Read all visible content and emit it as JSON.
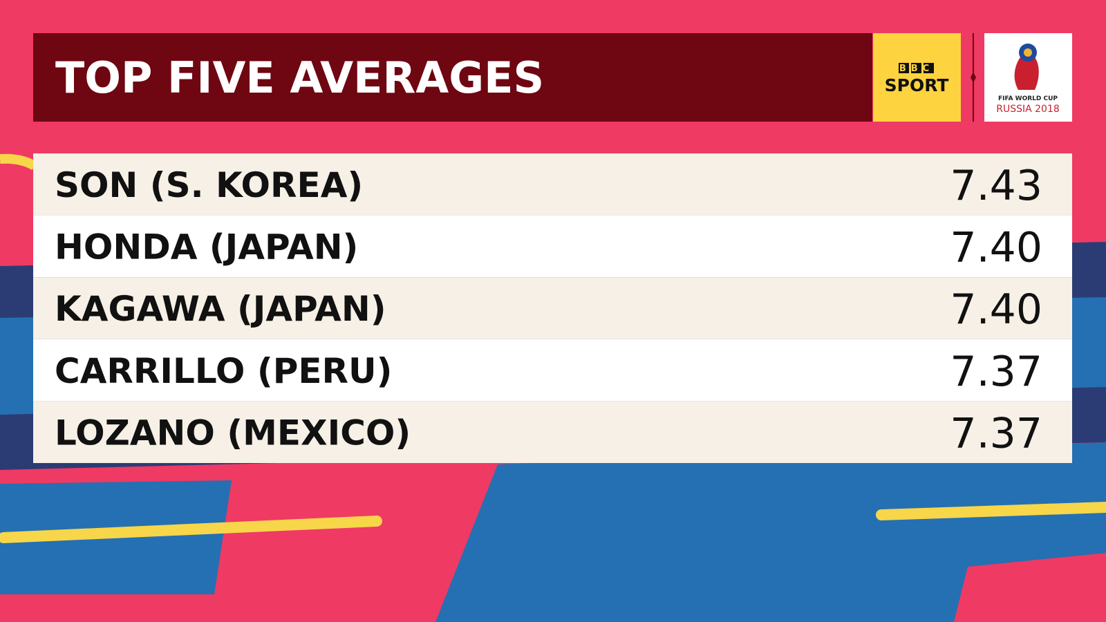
{
  "header": {
    "title": "TOP FIVE AVERAGES",
    "brand": {
      "top": "BBC",
      "bottom": "SPORT"
    },
    "logo": {
      "line1": "FIFA WORLD CUP",
      "line2": "RUSSIA 2018"
    }
  },
  "table": {
    "rows": [
      [
        "SON (S. KOREA)",
        "7.43"
      ],
      [
        "HONDA (JAPAN)",
        "7.40"
      ],
      [
        "KAGAWA (JAPAN)",
        "7.40"
      ],
      [
        "CARRILLO (PERU)",
        "7.37"
      ],
      [
        "LOZANO (MEXICO)",
        "7.37"
      ]
    ]
  }
}
